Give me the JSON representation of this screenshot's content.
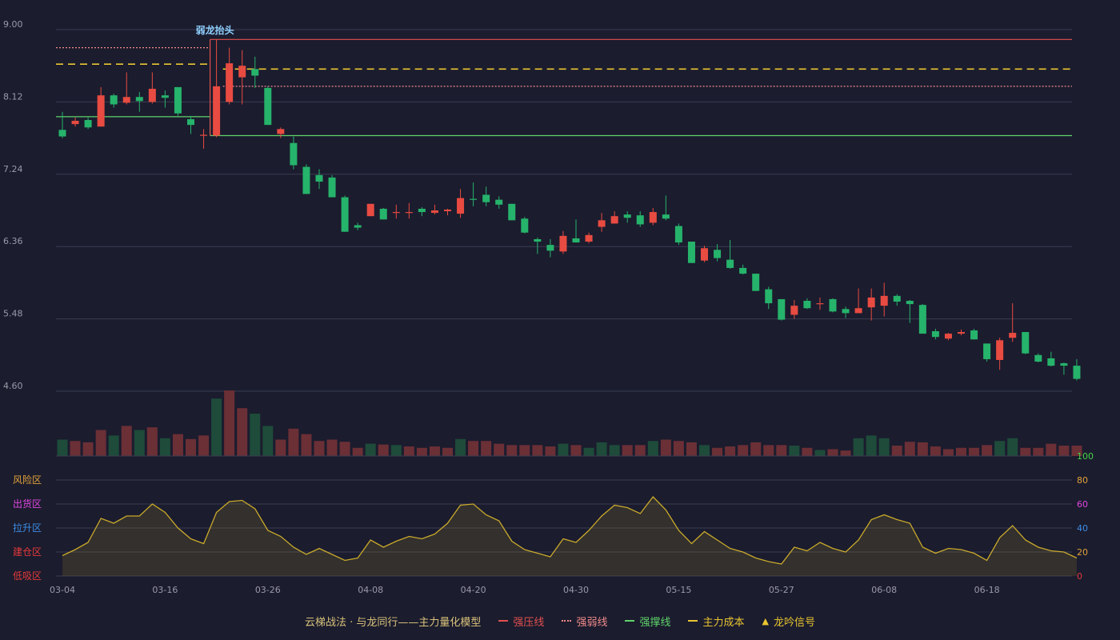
{
  "chart_data": {
    "type": "candlestick",
    "price_axis": {
      "ticks": [
        "9.00",
        "8.12",
        "7.24",
        "6.36",
        "5.48",
        "4.60"
      ],
      "ylim": [
        4.6,
        9.0
      ]
    },
    "x_tick_labels": [
      {
        "i": 0,
        "label": "03-04"
      },
      {
        "i": 8,
        "label": "03-16"
      },
      {
        "i": 16,
        "label": "03-26"
      },
      {
        "i": 24,
        "label": "04-08"
      },
      {
        "i": 32,
        "label": "04-20"
      },
      {
        "i": 40,
        "label": "04-30"
      },
      {
        "i": 48,
        "label": "05-15"
      },
      {
        "i": 56,
        "label": "05-27"
      },
      {
        "i": 64,
        "label": "06-08"
      },
      {
        "i": 72,
        "label": "06-18"
      }
    ],
    "candles": [
      [
        7.78,
        7.7,
        8.0,
        7.68
      ],
      [
        7.85,
        7.89,
        7.93,
        7.82
      ],
      [
        7.9,
        7.81,
        7.93,
        7.79
      ],
      [
        7.82,
        8.2,
        8.3,
        7.82
      ],
      [
        8.2,
        8.09,
        8.22,
        8.05
      ],
      [
        8.11,
        8.18,
        8.48,
        8.09
      ],
      [
        8.18,
        8.13,
        8.24,
        8.0
      ],
      [
        8.12,
        8.28,
        8.48,
        8.1
      ],
      [
        8.2,
        8.17,
        8.26,
        8.05
      ],
      [
        8.3,
        7.98,
        8.3,
        7.95
      ],
      [
        7.91,
        7.84,
        7.95,
        7.73
      ],
      [
        7.72,
        7.72,
        7.79,
        7.55
      ],
      [
        7.71,
        8.31,
        8.88,
        7.69
      ],
      [
        8.12,
        8.59,
        8.78,
        8.09
      ],
      [
        8.42,
        8.56,
        8.75,
        8.09
      ],
      [
        8.52,
        8.44,
        8.67,
        8.29
      ],
      [
        8.29,
        7.84,
        8.31,
        7.84
      ],
      [
        7.73,
        7.79,
        7.81,
        7.68
      ],
      [
        7.62,
        7.35,
        7.7,
        7.3
      ],
      [
        7.33,
        7.0,
        7.36,
        7.0
      ],
      [
        7.23,
        7.15,
        7.3,
        7.06
      ],
      [
        7.2,
        6.96,
        7.23,
        6.96
      ],
      [
        6.96,
        6.54,
        6.98,
        6.54
      ],
      [
        6.62,
        6.59,
        6.65,
        6.56
      ],
      [
        6.73,
        6.88,
        6.88,
        6.73
      ],
      [
        6.82,
        6.69,
        6.83,
        6.69
      ],
      [
        6.77,
        6.78,
        6.87,
        6.7
      ],
      [
        6.77,
        6.78,
        6.89,
        6.7
      ],
      [
        6.82,
        6.78,
        6.84,
        6.73
      ],
      [
        6.77,
        6.8,
        6.87,
        6.75
      ],
      [
        6.79,
        6.81,
        6.82,
        6.74
      ],
      [
        6.76,
        6.95,
        7.06,
        6.71
      ],
      [
        6.94,
        6.93,
        7.14,
        6.85
      ],
      [
        6.99,
        6.9,
        7.09,
        6.85
      ],
      [
        6.93,
        6.87,
        6.97,
        6.82
      ],
      [
        6.88,
        6.68,
        6.88,
        6.68
      ],
      [
        6.7,
        6.53,
        6.72,
        6.52
      ],
      [
        6.45,
        6.42,
        6.47,
        6.27
      ],
      [
        6.38,
        6.31,
        6.45,
        6.23
      ],
      [
        6.3,
        6.49,
        6.55,
        6.27
      ],
      [
        6.46,
        6.41,
        6.69,
        6.41
      ],
      [
        6.42,
        6.5,
        6.53,
        6.4
      ],
      [
        6.6,
        6.68,
        6.77,
        6.54
      ],
      [
        6.64,
        6.73,
        6.79,
        6.64
      ],
      [
        6.75,
        6.71,
        6.79,
        6.65
      ],
      [
        6.74,
        6.63,
        6.79,
        6.6
      ],
      [
        6.65,
        6.78,
        6.83,
        6.62
      ],
      [
        6.75,
        6.7,
        6.98,
        6.68
      ],
      [
        6.61,
        6.41,
        6.64,
        6.38
      ],
      [
        6.42,
        6.16,
        6.42,
        6.16
      ],
      [
        6.19,
        6.34,
        6.37,
        6.17
      ],
      [
        6.32,
        6.22,
        6.39,
        6.18
      ],
      [
        6.2,
        6.1,
        6.44,
        6.09
      ],
      [
        6.1,
        6.03,
        6.14,
        6.02
      ],
      [
        6.03,
        5.82,
        6.03,
        5.82
      ],
      [
        5.84,
        5.67,
        5.87,
        5.6
      ],
      [
        5.72,
        5.47,
        5.72,
        5.46
      ],
      [
        5.53,
        5.64,
        5.71,
        5.48
      ],
      [
        5.7,
        5.61,
        5.73,
        5.6
      ],
      [
        5.66,
        5.67,
        5.74,
        5.59
      ],
      [
        5.72,
        5.57,
        5.73,
        5.56
      ],
      [
        5.6,
        5.55,
        5.63,
        5.49
      ],
      [
        5.55,
        5.61,
        5.85,
        5.55
      ],
      [
        5.62,
        5.74,
        5.85,
        5.46
      ],
      [
        5.64,
        5.76,
        5.92,
        5.51
      ],
      [
        5.76,
        5.69,
        5.78,
        5.64
      ],
      [
        5.7,
        5.66,
        5.71,
        5.43
      ],
      [
        5.65,
        5.3,
        5.66,
        5.3
      ],
      [
        5.33,
        5.26,
        5.36,
        5.23
      ],
      [
        5.24,
        5.3,
        5.31,
        5.22
      ],
      [
        5.3,
        5.32,
        5.35,
        5.28
      ],
      [
        5.34,
        5.23,
        5.36,
        5.23
      ],
      [
        5.18,
        4.99,
        5.18,
        4.96
      ],
      [
        4.98,
        5.22,
        5.25,
        4.86
      ],
      [
        5.25,
        5.31,
        5.67,
        5.2
      ],
      [
        5.32,
        5.06,
        5.32,
        5.05
      ],
      [
        5.04,
        4.96,
        5.06,
        4.95
      ],
      [
        5.0,
        4.91,
        5.08,
        4.9
      ],
      [
        4.94,
        4.91,
        4.95,
        4.8
      ],
      [
        4.91,
        4.75,
        4.99,
        4.73
      ]
    ],
    "volumes": [
      60,
      55,
      50,
      95,
      75,
      110,
      95,
      105,
      65,
      80,
      62,
      75,
      210,
      240,
      175,
      155,
      110,
      60,
      100,
      80,
      55,
      60,
      52,
      30,
      45,
      42,
      40,
      35,
      30,
      35,
      30,
      62,
      55,
      55,
      45,
      40,
      40,
      40,
      35,
      45,
      40,
      30,
      50,
      40,
      40,
      40,
      55,
      60,
      55,
      50,
      40,
      30,
      35,
      40,
      50,
      40,
      40,
      38,
      30,
      22,
      25,
      20,
      65,
      75,
      65,
      38,
      52,
      50,
      35,
      25,
      30,
      30,
      40,
      55,
      65,
      30,
      30,
      45,
      38,
      38
    ],
    "volume_up_days": [
      1,
      0,
      0,
      0,
      1,
      0,
      1,
      0,
      1,
      0,
      0,
      0,
      1,
      0,
      0,
      1,
      1,
      0,
      0,
      0,
      0,
      0,
      0,
      0,
      1,
      0,
      1,
      0,
      0,
      0,
      0,
      1,
      0,
      0,
      0,
      0,
      0,
      0,
      0,
      1,
      0,
      1,
      1,
      1,
      0,
      0,
      1,
      0,
      0,
      0,
      1,
      0,
      0,
      0,
      0,
      0,
      0,
      1,
      0,
      1,
      0,
      0,
      1,
      1,
      1,
      0,
      0,
      0,
      0,
      0,
      0,
      0,
      0,
      1,
      1,
      0,
      0,
      0,
      0,
      0
    ],
    "levels": [
      {
        "name": "强压线",
        "segments": [
          [
            12,
            79,
            8.88
          ]
        ],
        "style": "solid",
        "color": "#e2504f"
      },
      {
        "name": "强弱线",
        "segments": [
          [
            0,
            11,
            8.78
          ],
          [
            13,
            79,
            8.31
          ]
        ],
        "style": "dotted",
        "color": "#f08a8a"
      },
      {
        "name": "强撑线",
        "segments": [
          [
            0,
            11,
            7.94
          ],
          [
            12,
            79,
            7.71
          ]
        ],
        "style": "solid",
        "color": "#5fd36a"
      },
      {
        "name": "主力成本",
        "segments": [
          [
            0,
            11,
            8.58
          ],
          [
            13,
            79,
            8.52
          ]
        ],
        "style": "dashed",
        "color": "#e9c531"
      }
    ],
    "signals": [
      {
        "i": 12,
        "label": "弱龙抬头"
      }
    ],
    "oscillator": {
      "ylim": [
        0,
        100
      ],
      "ticks": [
        {
          "v": 100,
          "label": "100",
          "color": "#46d246"
        },
        {
          "v": 80,
          "label": "80",
          "color": "#e3a33a"
        },
        {
          "v": 60,
          "label": "60",
          "color": "#e046e0"
        },
        {
          "v": 40,
          "label": "40",
          "color": "#3e8ee6"
        },
        {
          "v": 20,
          "label": "20",
          "color": "#e3a33a"
        },
        {
          "v": 0,
          "label": "0",
          "color": "#e33a3a"
        }
      ],
      "zones": [
        {
          "label": "风险区",
          "v": 80,
          "color": "#e3a33a"
        },
        {
          "label": "出货区",
          "v": 60,
          "color": "#e046e0"
        },
        {
          "label": "拉升区",
          "v": 40,
          "color": "#3e8ee6"
        },
        {
          "label": "建仓区",
          "v": 20,
          "color": "#e33a3a"
        },
        {
          "label": "低吸区",
          "v": 0,
          "color": "#e33a3a"
        }
      ],
      "values": [
        17,
        22,
        28,
        48,
        44,
        50,
        50,
        60,
        53,
        40,
        31,
        27,
        53,
        62,
        63,
        56,
        38,
        33,
        24,
        18,
        23,
        18,
        13,
        15,
        30,
        24,
        29,
        33,
        31,
        35,
        44,
        59,
        60,
        51,
        46,
        29,
        22,
        19,
        16,
        31,
        28,
        38,
        50,
        59,
        57,
        52,
        66,
        55,
        38,
        27,
        37,
        30,
        23,
        20,
        15,
        12,
        10,
        24,
        21,
        28,
        23,
        20,
        30,
        47,
        51,
        47,
        44,
        24,
        19,
        23,
        22,
        19,
        13,
        32,
        42,
        30,
        24,
        21,
        20,
        15
      ]
    },
    "legend_title": "云梯战法 · 与龙同行——主力量化模型",
    "legend": [
      {
        "label": "强压线",
        "color": "#e2504f",
        "style": "solid"
      },
      {
        "label": "强弱线",
        "color": "#f08a8a",
        "style": "dotted"
      },
      {
        "label": "强撑线",
        "color": "#5fd36a",
        "style": "solid"
      },
      {
        "label": "主力成本",
        "color": "#e9c531",
        "style": "dashed"
      },
      {
        "label": "龙吟信号",
        "color": "#e9c531",
        "style": "triangle"
      }
    ],
    "colors": {
      "up": "#e84b41",
      "down": "#26b36b",
      "volume_up": "#6b2f36",
      "volume_down": "#1e4b3a",
      "osc_line": "#c9a92b",
      "grid": "#3a3c52",
      "axis_text": "#9a9aa8"
    }
  }
}
